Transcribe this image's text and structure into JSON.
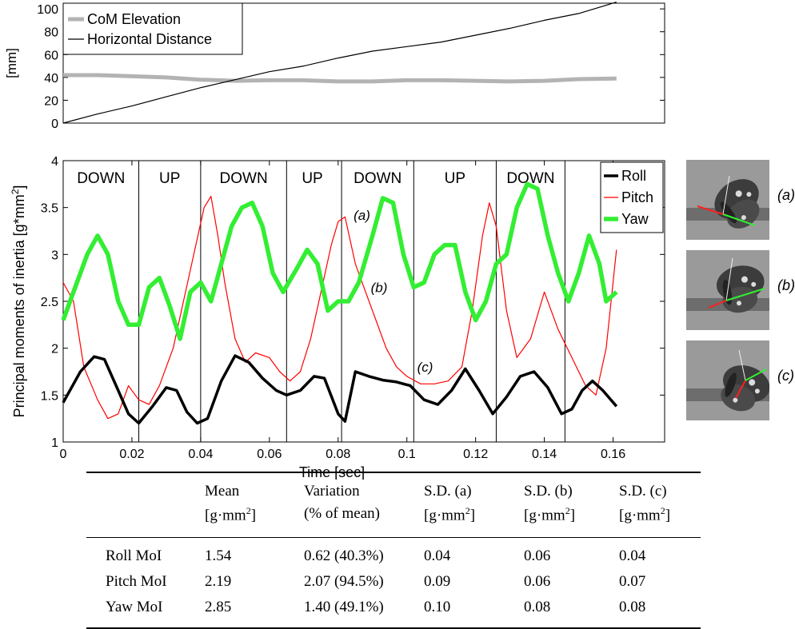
{
  "chart_data": [
    {
      "type": "line",
      "ylabel": "[mm]",
      "ylim": [
        0,
        105
      ],
      "yticks": [
        "0",
        "20",
        "40",
        "60",
        "80",
        "100"
      ],
      "xlim": [
        0,
        0.175
      ],
      "legend_placement": "top-left",
      "grid": false,
      "series": [
        {
          "name": "CoM Elevation",
          "color": "#b3b3b3",
          "x": [
            0,
            0.01,
            0.02,
            0.03,
            0.04,
            0.05,
            0.06,
            0.07,
            0.08,
            0.09,
            0.1,
            0.11,
            0.12,
            0.13,
            0.14,
            0.15,
            0.161
          ],
          "y": [
            42,
            42,
            41,
            40,
            38,
            37,
            37.5,
            37.5,
            36.5,
            36.5,
            37.5,
            37.5,
            37,
            36.5,
            37,
            38.5,
            39
          ]
        },
        {
          "name": "Horizontal Distance",
          "color": "#000000",
          "x": [
            0,
            0.01,
            0.02,
            0.03,
            0.04,
            0.05,
            0.06,
            0.07,
            0.08,
            0.09,
            0.1,
            0.11,
            0.12,
            0.13,
            0.14,
            0.15,
            0.161
          ],
          "y": [
            0,
            8,
            15,
            23,
            31,
            38,
            45,
            50,
            57,
            63,
            67,
            71,
            77,
            83,
            90,
            96,
            106
          ]
        }
      ]
    },
    {
      "type": "line",
      "xlabel": "Time [sec]",
      "ylabel": "Principal moments of inertia [g*mm",
      "ylabel_sup": "2",
      "ylabel_end": "]",
      "xlim": [
        0,
        0.175
      ],
      "ylim": [
        1,
        4
      ],
      "xticks": [
        "0",
        "0.02",
        "0.04",
        "0.06",
        "0.08",
        "0.1",
        "0.12",
        "0.14",
        "0.16"
      ],
      "yticks": [
        "1",
        "1.5",
        "2",
        "2.5",
        "3",
        "3.5",
        "4"
      ],
      "legend_placement": "top-right",
      "grid": false,
      "phase_boundaries": [
        0.022,
        0.04,
        0.065,
        0.081,
        0.102,
        0.126,
        0.146
      ],
      "phases": [
        {
          "label": "DOWN",
          "x": 0.011
        },
        {
          "label": "UP",
          "x": 0.031
        },
        {
          "label": "DOWN",
          "x": 0.0525
        },
        {
          "label": "UP",
          "x": 0.0725
        },
        {
          "label": "DOWN",
          "x": 0.0915
        },
        {
          "label": "UP",
          "x": 0.114
        },
        {
          "label": "DOWN",
          "x": 0.136
        }
      ],
      "annotations": [
        {
          "text": "(a)",
          "x": 0.0845,
          "y": 3.37
        },
        {
          "text": "(b)",
          "x": 0.0895,
          "y": 2.6
        },
        {
          "text": "(c)",
          "x": 0.103,
          "y": 1.75
        }
      ],
      "series": [
        {
          "name": "Roll",
          "color": "#000000",
          "x": [
            0,
            0.005,
            0.009,
            0.012,
            0.016,
            0.019,
            0.022,
            0.026,
            0.03,
            0.033,
            0.036,
            0.039,
            0.042,
            0.046,
            0.05,
            0.054,
            0.058,
            0.062,
            0.065,
            0.069,
            0.073,
            0.076,
            0.08,
            0.082,
            0.085,
            0.089,
            0.093,
            0.097,
            0.101,
            0.105,
            0.109,
            0.113,
            0.117,
            0.121,
            0.125,
            0.129,
            0.133,
            0.137,
            0.141,
            0.145,
            0.148,
            0.151,
            0.154,
            0.157,
            0.161
          ],
          "y": [
            1.42,
            1.75,
            1.91,
            1.88,
            1.55,
            1.3,
            1.2,
            1.38,
            1.58,
            1.55,
            1.32,
            1.2,
            1.25,
            1.65,
            1.92,
            1.85,
            1.68,
            1.55,
            1.5,
            1.55,
            1.7,
            1.68,
            1.3,
            1.22,
            1.75,
            1.7,
            1.66,
            1.64,
            1.6,
            1.45,
            1.4,
            1.55,
            1.78,
            1.55,
            1.3,
            1.48,
            1.7,
            1.75,
            1.58,
            1.3,
            1.35,
            1.55,
            1.65,
            1.55,
            1.38
          ]
        },
        {
          "name": "Pitch",
          "color": "#ff0000",
          "x": [
            0,
            0.003,
            0.006,
            0.01,
            0.013,
            0.016,
            0.019,
            0.022,
            0.025,
            0.028,
            0.032,
            0.035,
            0.038,
            0.041,
            0.043,
            0.045,
            0.047,
            0.05,
            0.053,
            0.056,
            0.06,
            0.063,
            0.066,
            0.069,
            0.072,
            0.075,
            0.078,
            0.08,
            0.082,
            0.085,
            0.088,
            0.091,
            0.094,
            0.097,
            0.1,
            0.104,
            0.108,
            0.112,
            0.116,
            0.119,
            0.122,
            0.124,
            0.126,
            0.129,
            0.132,
            0.136,
            0.14,
            0.144,
            0.148,
            0.152,
            0.155,
            0.158,
            0.161
          ],
          "y": [
            2.7,
            2.5,
            1.8,
            1.45,
            1.25,
            1.3,
            1.6,
            1.45,
            1.4,
            1.6,
            2.0,
            2.5,
            3.0,
            3.5,
            3.62,
            3.2,
            2.7,
            2.1,
            1.85,
            1.95,
            1.9,
            1.75,
            1.65,
            1.75,
            2.1,
            2.6,
            3.1,
            3.35,
            3.4,
            2.9,
            2.6,
            2.3,
            2.0,
            1.8,
            1.7,
            1.62,
            1.62,
            1.65,
            1.8,
            2.4,
            3.2,
            3.55,
            3.3,
            2.4,
            1.9,
            2.1,
            2.6,
            2.2,
            1.9,
            1.6,
            1.5,
            2.0,
            3.05
          ]
        },
        {
          "name": "Yaw",
          "color": "#33ee33",
          "x": [
            0,
            0.004,
            0.007,
            0.01,
            0.013,
            0.016,
            0.019,
            0.022,
            0.025,
            0.028,
            0.031,
            0.034,
            0.037,
            0.04,
            0.043,
            0.046,
            0.049,
            0.052,
            0.055,
            0.058,
            0.061,
            0.064,
            0.068,
            0.071,
            0.074,
            0.077,
            0.08,
            0.083,
            0.086,
            0.09,
            0.093,
            0.096,
            0.099,
            0.102,
            0.105,
            0.108,
            0.111,
            0.114,
            0.117,
            0.12,
            0.123,
            0.126,
            0.129,
            0.132,
            0.135,
            0.138,
            0.141,
            0.144,
            0.147,
            0.15,
            0.153,
            0.156,
            0.158,
            0.161
          ],
          "y": [
            2.3,
            2.7,
            3.0,
            3.2,
            3.0,
            2.5,
            2.25,
            2.25,
            2.65,
            2.75,
            2.45,
            2.1,
            2.6,
            2.7,
            2.5,
            2.9,
            3.3,
            3.5,
            3.55,
            3.3,
            2.8,
            2.6,
            2.85,
            3.05,
            2.9,
            2.4,
            2.5,
            2.5,
            2.7,
            3.2,
            3.6,
            3.55,
            3.0,
            2.65,
            2.7,
            3.0,
            3.1,
            3.1,
            2.6,
            2.3,
            2.5,
            2.9,
            3.0,
            3.5,
            3.75,
            3.7,
            3.2,
            2.8,
            2.5,
            2.8,
            3.2,
            2.9,
            2.5,
            2.6
          ]
        }
      ]
    }
  ],
  "thumbnails": [
    {
      "label": "(a)",
      "color_red": "#ff2020",
      "color_green": "#33ee33"
    },
    {
      "label": "(b)",
      "color_red": "#ff2020",
      "color_green": "#33ee33"
    },
    {
      "label": "(c)",
      "color_red": "#ff2020",
      "color_green": "#33ee33"
    }
  ],
  "table": {
    "header_row1": [
      "",
      "Mean",
      "Variation",
      "S.D. (a)",
      "S.D. (b)",
      "S.D. (c)"
    ],
    "header_row2": [
      "",
      "[g·mm",
      "(% of mean)",
      "[g·mm",
      "[g·mm",
      "[g·mm"
    ],
    "unit_sup": "2",
    "unit_end": "]",
    "rows": [
      [
        "Roll MoI",
        "1.54",
        "0.62 (40.3%)",
        "0.04",
        "0.06",
        "0.04"
      ],
      [
        "Pitch MoI",
        "2.19",
        "2.07 (94.5%)",
        "0.09",
        "0.06",
        "0.07"
      ],
      [
        "Yaw MoI",
        "2.85",
        "1.40 (49.1%)",
        "0.10",
        "0.08",
        "0.08"
      ]
    ]
  }
}
